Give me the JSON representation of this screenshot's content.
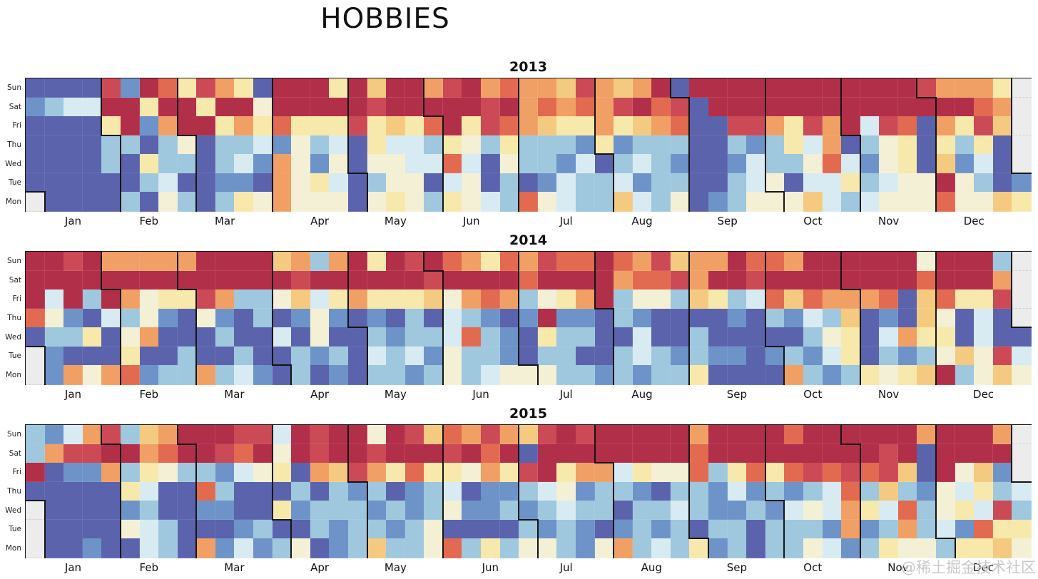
{
  "title": "HOBBIES",
  "watermark": "@稀土掘金技术社区",
  "day_labels": [
    "Sun",
    "Sat",
    "Fri",
    "Thu",
    "Wed",
    "Tue",
    "Mon"
  ],
  "month_labels": [
    "Jan",
    "Feb",
    "Mar",
    "Apr",
    "May",
    "Jun",
    "Jul",
    "Aug",
    "Sep",
    "Oct",
    "Nov",
    "Dec"
  ],
  "palette": {
    "0": "#5a63ac",
    "1": "#6d93c8",
    "2": "#9fc7de",
    "3": "#d8eaf2",
    "4": "#f3f0d6",
    "5": "#f7e8ab",
    "6": "#f4ca80",
    "7": "#f0a065",
    "8": "#e16a51",
    "9": "#cb4a55",
    "a": "#b22f4a",
    "empty": "#ececec",
    "boundary": "#151515"
  },
  "chart_data": {
    "type": "heatmap",
    "subtype": "calendar-heatmap",
    "title": "HOBBIES",
    "value_scale": "palette index 0 (low, dark blue) to a (high, dark red); '.' = day outside year",
    "row_order_top_to_bottom": [
      "Sun",
      "Sat",
      "Fri",
      "Thu",
      "Wed",
      "Tue",
      "Mon"
    ],
    "weeks_per_year": 53,
    "panels": [
      {
        "year": "2013",
        "leading_empty_cells": 1,
        "rows": {
          "Sun": "000091a859750aaa5a6aa79a787769767a0aaaaaaaaaaaa97775.",
          "Sat": "1233aa5aa5aa4aaaaa9aaaaa9a787879a890aaaaaaaaaaaaaa87.",
          "Fri": "00005a17aa575855595658a59876557567800997597a39807596.",
          "Thu": "0000220240223142305332542522215122200212537024505250.",
          "Wed": "0000205220231741404433830422130232100132248314506130.",
          "Tue": "000000230011074530244034020132231220023403352344a4201",
          "Mon": ".0000204202547444045425432843226324012444632344484465"
        }
      },
      {
        "year": "2014",
        "leading_empty_cells": 2,
        "rows": {
          "Sun": "aa9a77777aaaa6727a5a9a87587988a879677a887aaaaaa4aaa2.",
          "Sat": "aaaaaaaaaaaaaa9aaaaaa9aaaa8aaaa78897aa9aaaaaaaa8aaa7.",
          "Fri": "a3a2a7455972246357555647872457a244265238687778068559.",
          "Thu": "841032410410201410102032101a110210000102132601064030.",
          "Wed": "02250470002003040021223821052200300200000245037550300",
          "Tue": ".1000500200200212032314221022002321211012135021246493",
          "Mon": ".17478122723102010221242344422121225000072125456a2464"
        }
      },
      {
        "year": "2015",
        "leading_empty_cells": 3,
        "rows": {
          "Sun": "21379267aaa993a9aa4a96879769a9aaaaa7aaaa8aaaaaa7aaa7.",
          "Sat": "2799aa78aa98a4a9aa9aaa9a8a0aaaaaaaa8aaaaaaaaa9a0aaaa.",
          "Fri": "a01172542213450769758554759a57735448258589898960a461.",
          "Thu": "00000530082000202120123011234122102213121238262143523",
          "Wed": ".0000120011005122212124112123220223211213437538245392",
          "Tue": ".0000432000120021221240000212101212022022217127231855",
          "Mon": ".0010032071312401262248252442147232512022431254425564"
        }
      }
    ]
  }
}
